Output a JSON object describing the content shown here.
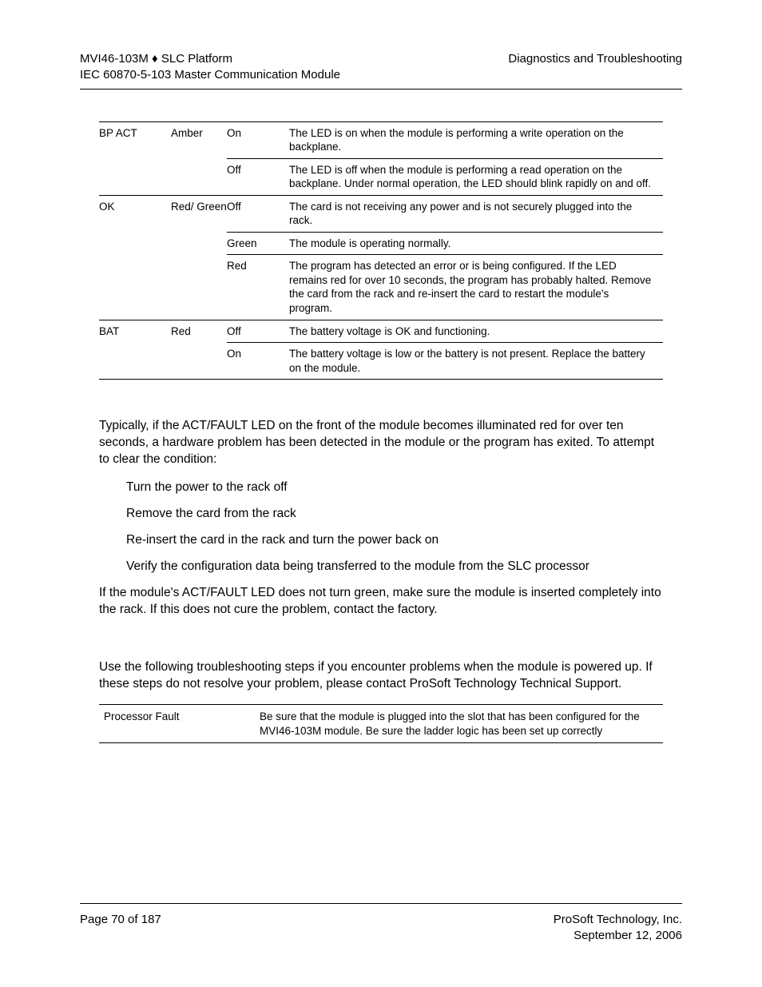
{
  "header": {
    "left_line1": "MVI46-103M ♦ SLC Platform",
    "left_line2": "IEC 60870-5-103 Master Communication Module",
    "right_line1": "Diagnostics and Troubleshooting"
  },
  "led_table": {
    "groups": [
      {
        "led": "BP ACT",
        "color": "Amber",
        "rows": [
          {
            "state": "On",
            "desc": "The LED is on when the module is performing a write operation on the backplane."
          },
          {
            "state": "Off",
            "desc": "The LED is off when the module is performing a read operation on the backplane. Under normal operation, the LED should blink rapidly on and off."
          }
        ]
      },
      {
        "led": "OK",
        "color": "Red/ Green",
        "rows": [
          {
            "state": "Off",
            "desc": "The card is not receiving any power and is not securely plugged into the rack."
          },
          {
            "state": "Green",
            "desc": "The module is operating normally."
          },
          {
            "state": "Red",
            "desc": "The program has detected an error or is being configured. If the LED remains red for over 10 seconds, the program has probably halted. Remove the card from the rack and re-insert the card to restart the module's program."
          }
        ]
      },
      {
        "led": "BAT",
        "color": "Red",
        "rows": [
          {
            "state": "Off",
            "desc": "The battery voltage is OK and functioning."
          },
          {
            "state": "On",
            "desc": "The battery voltage is low or the battery is not present. Replace the battery on the module."
          }
        ]
      }
    ]
  },
  "body": {
    "para1": "Typically, if the ACT/FAULT LED on the front of the module becomes illuminated red for over ten seconds, a hardware problem has been detected in the module or the program has exited. To attempt to clear the condition:",
    "steps": [
      "Turn the power to the rack off",
      "Remove the card from the rack",
      "Re-insert the card in the rack and turn the power back on",
      "Verify the configuration data being transferred to the module from the SLC processor"
    ],
    "para2": "If the module's ACT/FAULT LED does not turn green, make sure the module is inserted completely into the rack. If this does not cure the problem, contact the factory.",
    "para3": "Use the following troubleshooting steps if you encounter problems when the module is powered up. If these steps do not resolve your problem, please contact ProSoft Technology Technical Support."
  },
  "error_table": {
    "rows": [
      {
        "condition": "Processor Fault",
        "action": "Be sure that the module is plugged into the slot that has been configured for the MVI46-103M module. Be sure the ladder logic has been set up correctly"
      }
    ]
  },
  "footer": {
    "left": "Page 70 of 187",
    "right_line1": "ProSoft Technology, Inc.",
    "right_line2": "September 12, 2006"
  }
}
